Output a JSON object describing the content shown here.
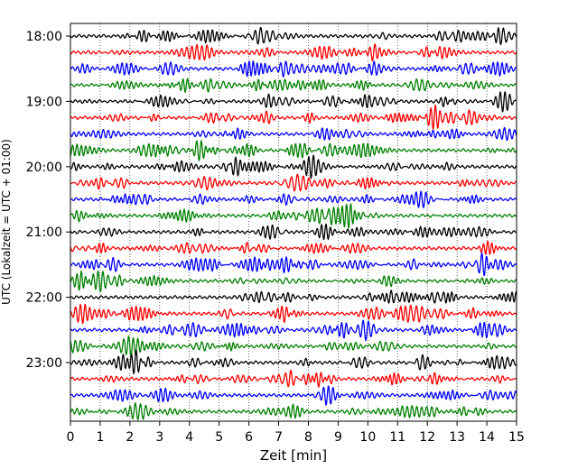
{
  "chart_data": {
    "type": "line",
    "title": "",
    "xlabel": "Zeit  [min]",
    "ylabel": "UTC (Lokalzeit = UTC + 01:00)",
    "xlim": [
      0,
      15
    ],
    "x_ticks": [
      "0",
      "1",
      "2",
      "3",
      "4",
      "5",
      "6",
      "7",
      "8",
      "9",
      "10",
      "11",
      "12",
      "13",
      "14",
      "15"
    ],
    "y_ticks": [
      "18:00",
      "19:00",
      "20:00",
      "21:00",
      "22:00",
      "23:00"
    ],
    "grid": "vertical dotted",
    "trace_colors": [
      "#000000",
      "#ff0000",
      "#0000ff",
      "#008000"
    ],
    "traces_start": "18:00",
    "trace_interval_min": 15,
    "trace_count": 24
  }
}
